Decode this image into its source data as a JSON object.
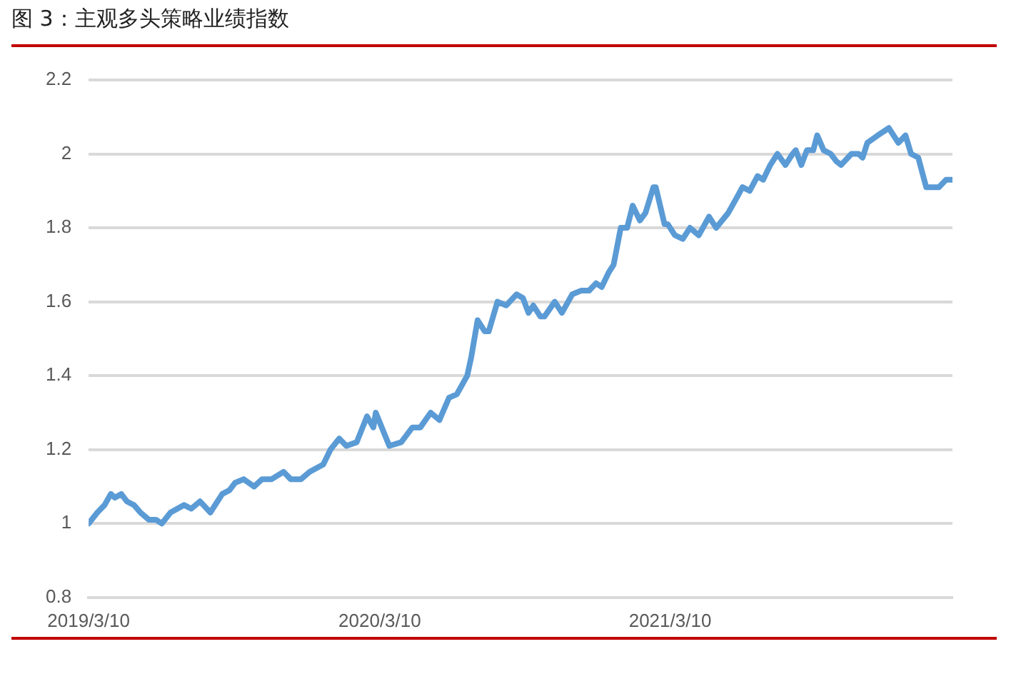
{
  "chart_data": {
    "type": "line",
    "title": "图 3：主观多头策略业绩指数",
    "x": [
      "2019-03-10",
      "2019-03-21",
      "2019-03-30",
      "2019-04-07",
      "2019-04-12",
      "2019-04-20",
      "2019-04-27",
      "2019-05-06",
      "2019-05-14",
      "2019-05-25",
      "2019-06-03",
      "2019-06-10",
      "2019-06-21",
      "2019-07-08",
      "2019-07-17",
      "2019-07-28",
      "2019-08-10",
      "2019-08-25",
      "2019-09-03",
      "2019-09-10",
      "2019-09-21",
      "2019-10-04",
      "2019-10-14",
      "2019-10-26",
      "2019-11-10",
      "2019-11-19",
      "2019-12-02",
      "2019-12-13",
      "2019-12-30",
      "2020-01-08",
      "2020-01-19",
      "2020-01-28",
      "2020-02-10",
      "2020-02-23",
      "2020-03-02",
      "2020-03-05",
      "2020-03-22",
      "2020-04-06",
      "2020-04-20",
      "2020-04-30",
      "2020-05-13",
      "2020-05-24",
      "2020-06-05",
      "2020-06-15",
      "2020-06-28",
      "2020-07-03",
      "2020-07-11",
      "2020-07-20",
      "2020-07-25",
      "2020-08-05",
      "2020-08-16",
      "2020-08-29",
      "2020-09-06",
      "2020-09-13",
      "2020-09-19",
      "2020-09-28",
      "2020-10-03",
      "2020-10-16",
      "2020-10-25",
      "2020-11-07",
      "2020-11-18",
      "2020-11-28",
      "2020-12-07",
      "2020-12-14",
      "2020-12-23",
      "2020-12-29",
      "2021-01-07",
      "2021-01-15",
      "2021-01-22",
      "2021-01-31",
      "2021-02-07",
      "2021-02-17",
      "2021-02-20",
      "2021-03-03",
      "2021-03-07",
      "2021-03-16",
      "2021-03-26",
      "2021-04-04",
      "2021-04-15",
      "2021-04-28",
      "2021-05-07",
      "2021-05-22",
      "2021-06-04",
      "2021-06-09",
      "2021-06-18",
      "2021-06-28",
      "2021-07-05",
      "2021-07-14",
      "2021-07-23",
      "2021-08-02",
      "2021-08-11",
      "2021-08-15",
      "2021-08-22",
      "2021-08-29",
      "2021-09-06",
      "2021-09-11",
      "2021-09-19",
      "2021-09-28",
      "2021-10-05",
      "2021-10-11",
      "2021-10-24",
      "2021-11-02",
      "2021-11-07",
      "2021-11-13",
      "2021-11-26",
      "2021-12-10",
      "2021-12-22",
      "2021-12-31",
      "2022-01-07",
      "2022-01-16",
      "2022-01-26",
      "2022-02-11",
      "2022-02-20",
      "2022-02-28"
    ],
    "series": [
      {
        "color": "#5b9bd5",
        "values": [
          1.0,
          1.03,
          1.05,
          1.08,
          1.07,
          1.08,
          1.06,
          1.05,
          1.03,
          1.01,
          1.01,
          1.0,
          1.03,
          1.05,
          1.04,
          1.06,
          1.03,
          1.08,
          1.09,
          1.11,
          1.12,
          1.1,
          1.12,
          1.12,
          1.14,
          1.12,
          1.12,
          1.14,
          1.16,
          1.2,
          1.23,
          1.21,
          1.22,
          1.29,
          1.26,
          1.3,
          1.21,
          1.22,
          1.26,
          1.26,
          1.3,
          1.28,
          1.34,
          1.35,
          1.4,
          1.45,
          1.55,
          1.52,
          1.52,
          1.6,
          1.59,
          1.62,
          1.61,
          1.57,
          1.59,
          1.56,
          1.56,
          1.6,
          1.57,
          1.62,
          1.63,
          1.63,
          1.65,
          1.64,
          1.68,
          1.7,
          1.8,
          1.8,
          1.86,
          1.82,
          1.84,
          1.91,
          1.91,
          1.81,
          1.81,
          1.78,
          1.77,
          1.8,
          1.78,
          1.83,
          1.8,
          1.84,
          1.89,
          1.91,
          1.9,
          1.94,
          1.93,
          1.97,
          2.0,
          1.97,
          2.0,
          2.01,
          1.97,
          2.01,
          2.01,
          2.05,
          2.01,
          2.0,
          1.98,
          1.97,
          2.0,
          2.0,
          1.99,
          2.03,
          2.05,
          2.07,
          2.03,
          2.05,
          2.0,
          1.99,
          1.91,
          1.91,
          1.93,
          1.93
        ]
      }
    ],
    "xlim": [
      "2019-03-10",
      "2022-02-28"
    ],
    "xticks": [
      {
        "value": "2019-03-10",
        "label": "2019/3/10"
      },
      {
        "value": "2020-03-10",
        "label": "2020/3/10"
      },
      {
        "value": "2021-03-10",
        "label": "2021/3/10"
      }
    ],
    "ylim": [
      0.8,
      2.2
    ],
    "yticks": [
      0.8,
      1,
      1.2,
      1.4,
      1.6,
      1.8,
      2,
      2.2
    ],
    "grid": "y",
    "legend": false,
    "marker": "none",
    "line_style": "solid"
  }
}
